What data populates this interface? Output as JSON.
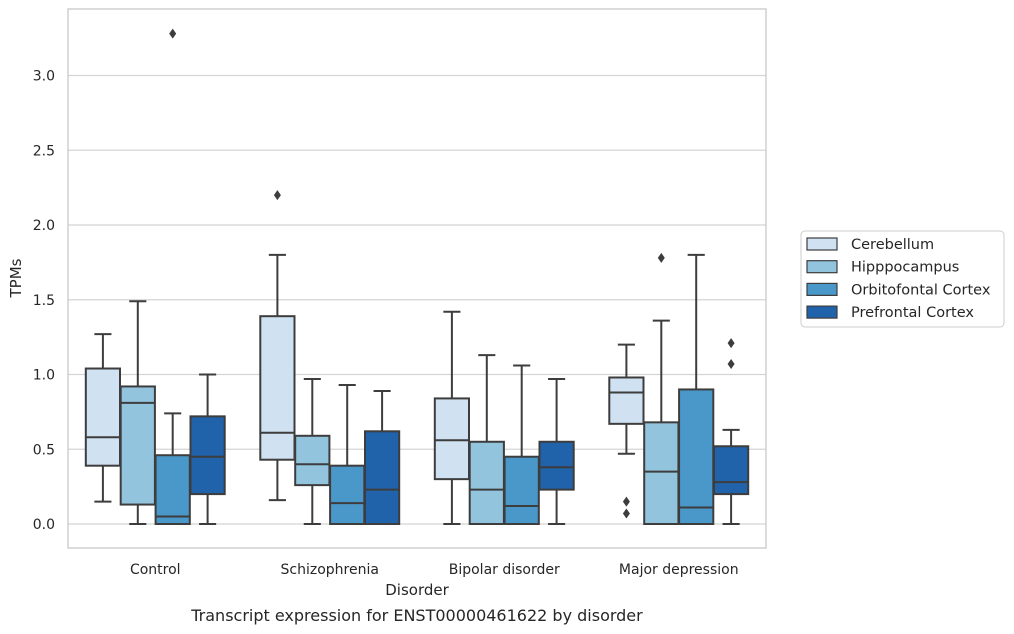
{
  "caption": "Transcript expression for ENST00000461622 by disorder",
  "chart_data": {
    "type": "box",
    "xlabel": "Disorder",
    "ylabel": "TPMs",
    "ylim": [
      -0.16,
      3.46
    ],
    "yticks": [
      "0.0",
      "0.5",
      "1.0",
      "1.5",
      "2.0",
      "2.5",
      "3.0"
    ],
    "grid": "horizontal",
    "legend_placement": "right",
    "categories": [
      "Control",
      "Schizophrenia",
      "Bipolar disorder",
      "Major depression"
    ],
    "series": [
      {
        "name": "Cerebellum",
        "color": "#d0e1f2",
        "boxes": [
          {
            "whisker_low": 0.15,
            "q1": 0.39,
            "median": 0.58,
            "q3": 1.04,
            "whisker_high": 1.27,
            "outliers": []
          },
          {
            "whisker_low": 0.16,
            "q1": 0.43,
            "median": 0.61,
            "q3": 1.39,
            "whisker_high": 1.8,
            "outliers": [
              2.2
            ]
          },
          {
            "whisker_low": 0.0,
            "q1": 0.3,
            "median": 0.56,
            "q3": 0.84,
            "whisker_high": 1.42,
            "outliers": []
          },
          {
            "whisker_low": 0.47,
            "q1": 0.67,
            "median": 0.88,
            "q3": 0.98,
            "whisker_high": 1.2,
            "outliers": [
              0.15,
              0.07
            ]
          }
        ]
      },
      {
        "name": "Hipppocampus",
        "color": "#93c4de",
        "boxes": [
          {
            "whisker_low": 0.0,
            "q1": 0.13,
            "median": 0.81,
            "q3": 0.92,
            "whisker_high": 1.49,
            "outliers": []
          },
          {
            "whisker_low": 0.0,
            "q1": 0.26,
            "median": 0.4,
            "q3": 0.59,
            "whisker_high": 0.97,
            "outliers": []
          },
          {
            "whisker_low": 0.0,
            "q1": 0.0,
            "median": 0.23,
            "q3": 0.55,
            "whisker_high": 1.13,
            "outliers": []
          },
          {
            "whisker_low": 0.0,
            "q1": 0.0,
            "median": 0.35,
            "q3": 0.68,
            "whisker_high": 1.36,
            "outliers": [
              1.78
            ]
          }
        ]
      },
      {
        "name": "Orbitofontal Cortex",
        "color": "#4a98c9",
        "boxes": [
          {
            "whisker_low": 0.0,
            "q1": 0.0,
            "median": 0.05,
            "q3": 0.46,
            "whisker_high": 0.74,
            "outliers": [
              3.28
            ]
          },
          {
            "whisker_low": 0.0,
            "q1": 0.0,
            "median": 0.14,
            "q3": 0.39,
            "whisker_high": 0.93,
            "outliers": []
          },
          {
            "whisker_low": 0.0,
            "q1": 0.0,
            "median": 0.12,
            "q3": 0.45,
            "whisker_high": 1.06,
            "outliers": []
          },
          {
            "whisker_low": 0.0,
            "q1": 0.0,
            "median": 0.11,
            "q3": 0.9,
            "whisker_high": 1.8,
            "outliers": []
          }
        ]
      },
      {
        "name": "Prefrontal Cortex",
        "color": "#2163aa",
        "boxes": [
          {
            "whisker_low": 0.0,
            "q1": 0.2,
            "median": 0.45,
            "q3": 0.72,
            "whisker_high": 1.0,
            "outliers": []
          },
          {
            "whisker_low": 0.0,
            "q1": 0.0,
            "median": 0.23,
            "q3": 0.62,
            "whisker_high": 0.89,
            "outliers": []
          },
          {
            "whisker_low": 0.0,
            "q1": 0.23,
            "median": 0.38,
            "q3": 0.55,
            "whisker_high": 0.97,
            "outliers": []
          },
          {
            "whisker_low": 0.0,
            "q1": 0.2,
            "median": 0.28,
            "q3": 0.52,
            "whisker_high": 0.63,
            "outliers": [
              1.21,
              1.07
            ]
          }
        ]
      }
    ]
  }
}
